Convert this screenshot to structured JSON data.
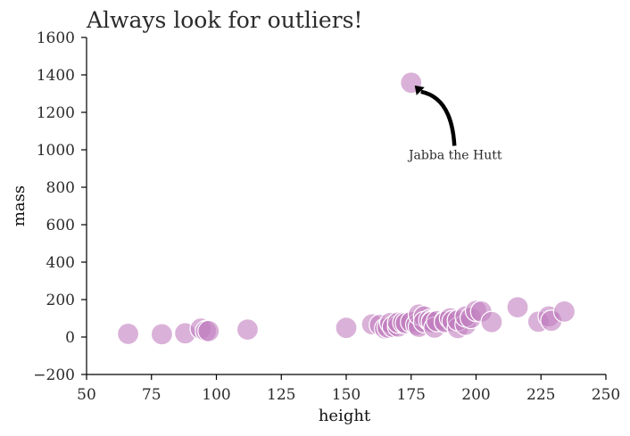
{
  "chart_data": {
    "type": "scatter",
    "title": "Always look for outliers!",
    "xlabel": "height",
    "ylabel": "mass",
    "xlim": [
      50,
      250
    ],
    "ylim": [
      -200,
      1600
    ],
    "xticks": [
      50,
      75,
      100,
      125,
      150,
      175,
      200,
      225,
      250
    ],
    "yticks": [
      -200,
      0,
      200,
      400,
      600,
      800,
      1000,
      1200,
      1400,
      1600
    ],
    "ytick_labels": [
      "−200",
      "0",
      "200",
      "400",
      "600",
      "800",
      "1000",
      "1200",
      "1400",
      "1600"
    ],
    "grid": false,
    "marker_color": "#c17fc0",
    "marker_edge_color": "#ffffff",
    "points": [
      {
        "x": 66,
        "y": 17
      },
      {
        "x": 79,
        "y": 15
      },
      {
        "x": 88,
        "y": 20
      },
      {
        "x": 94,
        "y": 45
      },
      {
        "x": 96,
        "y": 32
      },
      {
        "x": 97,
        "y": 32
      },
      {
        "x": 112,
        "y": 40
      },
      {
        "x": 150,
        "y": 49
      },
      {
        "x": 160,
        "y": 68
      },
      {
        "x": 163,
        "y": 65
      },
      {
        "x": 165,
        "y": 45
      },
      {
        "x": 166,
        "y": 50
      },
      {
        "x": 167,
        "y": 75
      },
      {
        "x": 168,
        "y": 55
      },
      {
        "x": 170,
        "y": 56
      },
      {
        "x": 170,
        "y": 77
      },
      {
        "x": 172,
        "y": 77
      },
      {
        "x": 173,
        "y": 74
      },
      {
        "x": 175,
        "y": 1358
      },
      {
        "x": 175,
        "y": 80
      },
      {
        "x": 177,
        "y": 65
      },
      {
        "x": 178,
        "y": 55
      },
      {
        "x": 178,
        "y": 120
      },
      {
        "x": 180,
        "y": 110
      },
      {
        "x": 180,
        "y": 80
      },
      {
        "x": 182,
        "y": 90
      },
      {
        "x": 183,
        "y": 84
      },
      {
        "x": 183,
        "y": 80
      },
      {
        "x": 184,
        "y": 50
      },
      {
        "x": 185,
        "y": 85
      },
      {
        "x": 188,
        "y": 84
      },
      {
        "x": 188,
        "y": 80
      },
      {
        "x": 190,
        "y": 100
      },
      {
        "x": 191,
        "y": 85
      },
      {
        "x": 193,
        "y": 48
      },
      {
        "x": 193,
        "y": 89
      },
      {
        "x": 196,
        "y": 66
      },
      {
        "x": 196,
        "y": 110
      },
      {
        "x": 198,
        "y": 102
      },
      {
        "x": 200,
        "y": 140
      },
      {
        "x": 202,
        "y": 136
      },
      {
        "x": 206,
        "y": 80
      },
      {
        "x": 216,
        "y": 159
      },
      {
        "x": 224,
        "y": 82
      },
      {
        "x": 228,
        "y": 110
      },
      {
        "x": 229,
        "y": 87
      },
      {
        "x": 234,
        "y": 136
      }
    ],
    "annotations": [
      {
        "text": "Jabba the Hutt",
        "x": 175,
        "y": 1358,
        "text_x": 192,
        "text_y": 950
      }
    ]
  }
}
